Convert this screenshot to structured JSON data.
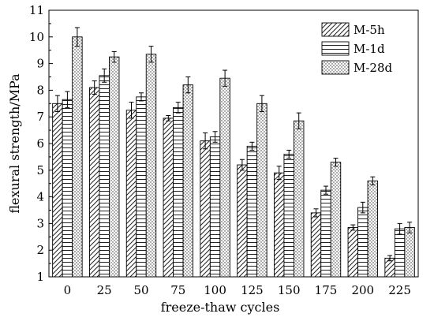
{
  "chart_data": {
    "type": "bar",
    "title": "",
    "xlabel": "freeze-thaw cycles",
    "ylabel": "flexural strength/MPa",
    "ylim": [
      1,
      11
    ],
    "yticks": [
      1,
      2,
      3,
      4,
      5,
      6,
      7,
      8,
      9,
      10,
      11
    ],
    "categories": [
      "0",
      "25",
      "50",
      "75",
      "100",
      "125",
      "150",
      "175",
      "200",
      "225"
    ],
    "legend_position": "top-right",
    "grid": false,
    "series": [
      {
        "name": "M-5h",
        "pattern": "diagonal-hatch",
        "values": [
          7.5,
          8.1,
          7.25,
          6.95,
          6.1,
          5.2,
          4.9,
          3.4,
          2.85,
          1.7
        ],
        "errors": [
          0.3,
          0.25,
          0.3,
          0.1,
          0.3,
          0.2,
          0.25,
          0.15,
          0.1,
          0.1
        ]
      },
      {
        "name": "M-1d",
        "pattern": "horizontal-stripes",
        "values": [
          7.65,
          8.55,
          7.75,
          7.35,
          6.25,
          5.9,
          5.6,
          4.25,
          3.6,
          2.8
        ],
        "errors": [
          0.3,
          0.25,
          0.15,
          0.2,
          0.2,
          0.15,
          0.15,
          0.15,
          0.2,
          0.2
        ]
      },
      {
        "name": "M-28d",
        "pattern": "dots",
        "values": [
          10.0,
          9.25,
          9.35,
          8.2,
          8.45,
          7.5,
          6.85,
          5.3,
          4.6,
          2.85
        ],
        "errors": [
          0.35,
          0.2,
          0.3,
          0.3,
          0.3,
          0.3,
          0.3,
          0.15,
          0.15,
          0.2
        ]
      }
    ]
  }
}
